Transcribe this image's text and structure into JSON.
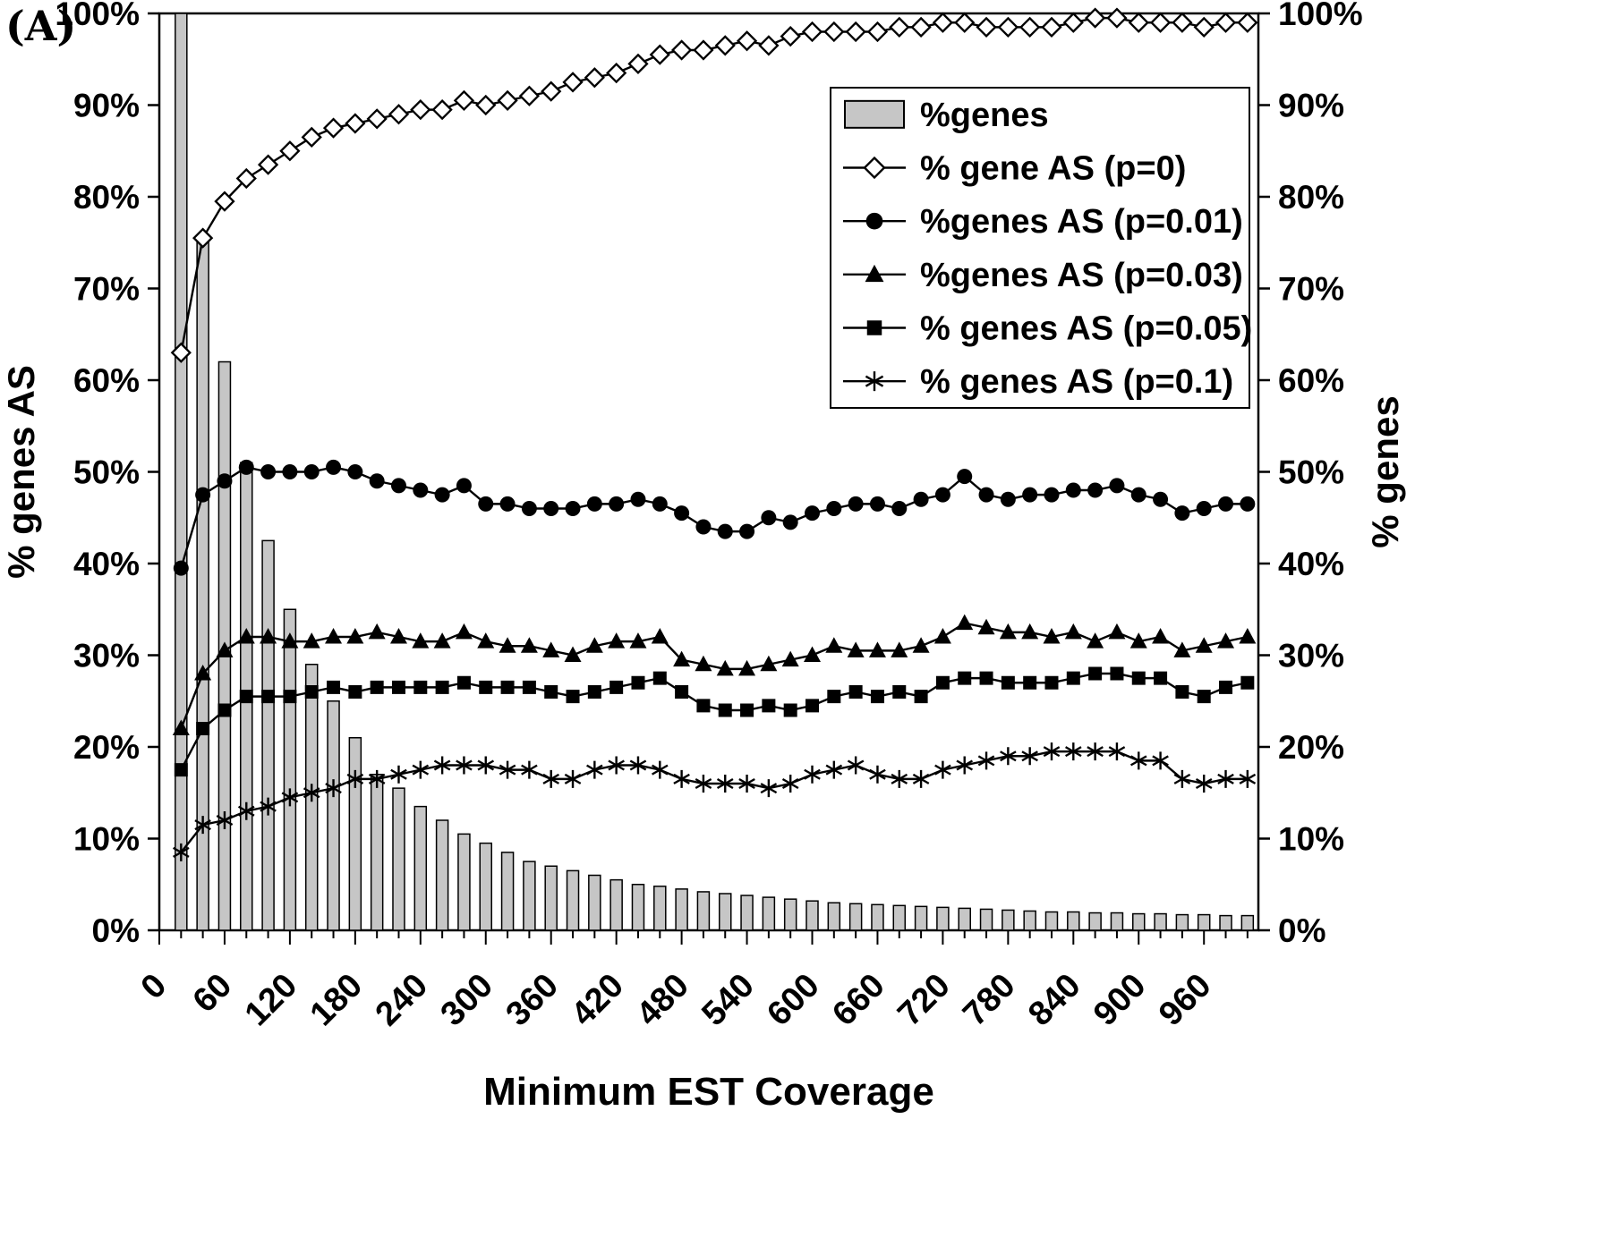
{
  "figure_label": "(A)",
  "chart_data": {
    "type": "bar",
    "combo": "bar+line",
    "title": "",
    "xlabel": "Minimum EST Coverage",
    "ylabel_left": "% genes AS",
    "ylabel_right": "% genes",
    "xlim": [
      0,
      1010
    ],
    "ylim": [
      0,
      100
    ],
    "yticks": [
      0,
      10,
      20,
      30,
      40,
      50,
      60,
      70,
      80,
      90,
      100
    ],
    "ytick_suffix": "%",
    "xticks": [
      0,
      60,
      120,
      180,
      240,
      300,
      360,
      420,
      480,
      540,
      600,
      660,
      720,
      780,
      840,
      900,
      960
    ],
    "x_minor_step": 20,
    "x_tick_rotation": -45,
    "grid": false,
    "legend_position": "top-right",
    "bar_color": "#c6c6c6",
    "line_color": "#000000",
    "x": [
      20,
      40,
      60,
      80,
      100,
      120,
      140,
      160,
      180,
      200,
      220,
      240,
      260,
      280,
      300,
      320,
      340,
      360,
      380,
      400,
      420,
      440,
      460,
      480,
      500,
      520,
      540,
      560,
      580,
      600,
      620,
      640,
      660,
      680,
      700,
      720,
      740,
      760,
      780,
      800,
      820,
      840,
      860,
      880,
      900,
      920,
      940,
      960,
      980,
      1000
    ],
    "bar_series": {
      "name": "%genes",
      "values": [
        100,
        75.5,
        62,
        51,
        42.5,
        35,
        29,
        25,
        21,
        17,
        15.5,
        13.5,
        12,
        10.5,
        9.5,
        8.5,
        7.5,
        7,
        6.5,
        6,
        5.5,
        5,
        4.8,
        4.5,
        4.2,
        4,
        3.8,
        3.6,
        3.4,
        3.2,
        3,
        2.9,
        2.8,
        2.7,
        2.6,
        2.5,
        2.4,
        2.3,
        2.2,
        2.1,
        2,
        2,
        1.9,
        1.9,
        1.8,
        1.8,
        1.7,
        1.7,
        1.6,
        1.6
      ]
    },
    "series": [
      {
        "id": "p0",
        "name": "% gene AS (p=0)",
        "marker": "open-diamond",
        "values": [
          63,
          75.5,
          79.5,
          82,
          83.5,
          85,
          86.5,
          87.5,
          88,
          88.5,
          89,
          89.5,
          89.5,
          90.5,
          90,
          90.5,
          91,
          91.5,
          92.5,
          93,
          93.5,
          94.5,
          95.5,
          96,
          96,
          96.5,
          97,
          96.5,
          97.5,
          98,
          98,
          98,
          98,
          98.5,
          98.5,
          99,
          99,
          98.5,
          98.5,
          98.5,
          98.5,
          99,
          99.5,
          99.5,
          99,
          99,
          99,
          98.5,
          99,
          99
        ]
      },
      {
        "id": "p001",
        "name": "%genes AS (p=0.01)",
        "marker": "filled-circle",
        "values": [
          39.5,
          47.5,
          49,
          50.5,
          50,
          50,
          50,
          50.5,
          50,
          49,
          48.5,
          48,
          47.5,
          48.5,
          46.5,
          46.5,
          46,
          46,
          46,
          46.5,
          46.5,
          47,
          46.5,
          45.5,
          44,
          43.5,
          43.5,
          45,
          44.5,
          45.5,
          46,
          46.5,
          46.5,
          46,
          47,
          47.5,
          49.5,
          47.5,
          47,
          47.5,
          47.5,
          48,
          48,
          48.5,
          47.5,
          47,
          45.5,
          46,
          46.5,
          46.5
        ]
      },
      {
        "id": "p003",
        "name": "%genes AS (p=0.03)",
        "marker": "filled-triangle",
        "values": [
          22,
          28,
          30.5,
          32,
          32,
          31.5,
          31.5,
          32,
          32,
          32.5,
          32,
          31.5,
          31.5,
          32.5,
          31.5,
          31,
          31,
          30.5,
          30,
          31,
          31.5,
          31.5,
          32,
          29.5,
          29,
          28.5,
          28.5,
          29,
          29.5,
          30,
          31,
          30.5,
          30.5,
          30.5,
          31,
          32,
          33.5,
          33,
          32.5,
          32.5,
          32,
          32.5,
          31.5,
          32.5,
          31.5,
          32,
          30.5,
          31,
          31.5,
          32
        ]
      },
      {
        "id": "p005",
        "name": "% genes AS (p=0.05)",
        "marker": "filled-square",
        "values": [
          17.5,
          22,
          24,
          25.5,
          25.5,
          25.5,
          26,
          26.5,
          26,
          26.5,
          26.5,
          26.5,
          26.5,
          27,
          26.5,
          26.5,
          26.5,
          26,
          25.5,
          26,
          26.5,
          27,
          27.5,
          26,
          24.5,
          24,
          24,
          24.5,
          24,
          24.5,
          25.5,
          26,
          25.5,
          26,
          25.5,
          27,
          27.5,
          27.5,
          27,
          27,
          27,
          27.5,
          28,
          28,
          27.5,
          27.5,
          26,
          25.5,
          26.5,
          27
        ]
      },
      {
        "id": "p01",
        "name": "% genes AS (p=0.1)",
        "marker": "asterisk",
        "values": [
          8.5,
          11.5,
          12,
          13,
          13.5,
          14.5,
          15,
          15.5,
          16.5,
          16.5,
          17,
          17.5,
          18,
          18,
          18,
          17.5,
          17.5,
          16.5,
          16.5,
          17.5,
          18,
          18,
          17.5,
          16.5,
          16,
          16,
          16,
          15.5,
          16,
          17,
          17.5,
          18,
          17,
          16.5,
          16.5,
          17.5,
          18,
          18.5,
          19,
          19,
          19.5,
          19.5,
          19.5,
          19.5,
          18.5,
          18.5,
          16.5,
          16,
          16.5,
          16.5
        ]
      }
    ]
  }
}
